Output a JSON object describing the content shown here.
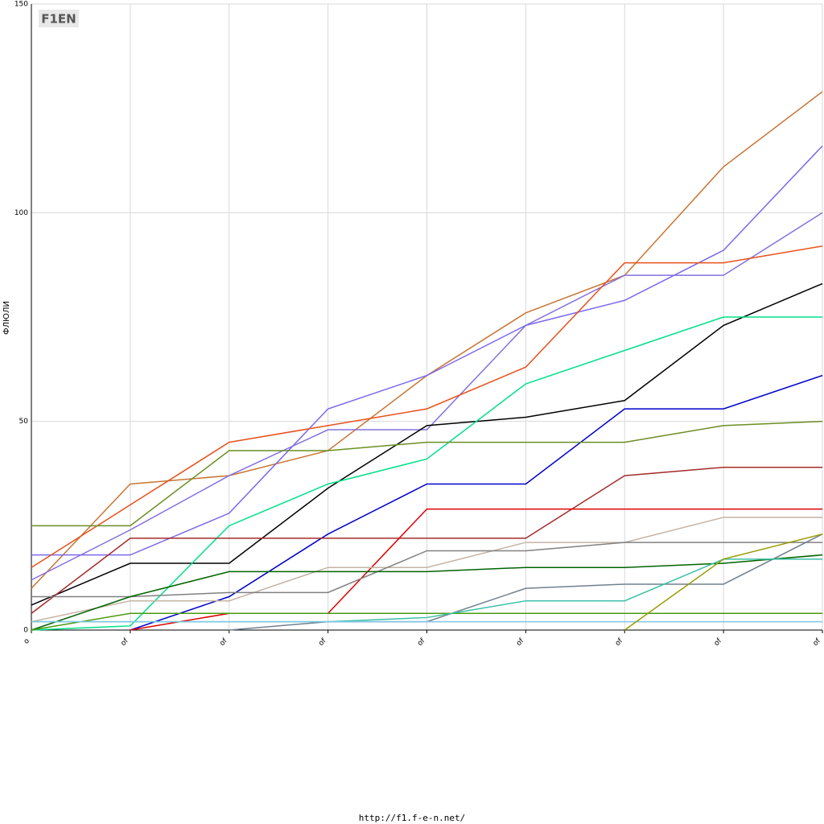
{
  "chart_data": {
    "type": "line",
    "y_label": "ФЛЮЛИ",
    "footer": "http://f1.f-e-n.net/",
    "logo": "F1EN",
    "categories": [
      "o",
      "of",
      "of",
      "of",
      "of",
      "of",
      "of",
      "of",
      "of"
    ],
    "ylim": [
      0,
      150
    ],
    "yticks": [
      0,
      50,
      100,
      150
    ],
    "grid": true,
    "series": [
      {
        "color": "#c87533",
        "values": [
          10,
          35,
          37,
          43,
          61,
          76,
          85,
          111,
          129
        ]
      },
      {
        "color": "#7b68ee",
        "values": [
          18,
          18,
          28,
          53,
          61,
          73,
          79,
          91,
          116
        ]
      },
      {
        "color": "#8470e0",
        "values": [
          12,
          24,
          37,
          48,
          48,
          73,
          85,
          85,
          100
        ]
      },
      {
        "color": "#e8501a",
        "values": [
          15,
          30,
          45,
          49,
          53,
          63,
          88,
          88,
          92
        ]
      },
      {
        "color": "#000000",
        "values": [
          6,
          16,
          16,
          34,
          49,
          51,
          55,
          73,
          83
        ]
      },
      {
        "color": "#00e08a",
        "values": [
          0,
          1,
          25,
          35,
          41,
          59,
          67,
          75,
          75
        ]
      },
      {
        "color": "#0000cc",
        "values": [
          null,
          0,
          8,
          23,
          35,
          35,
          53,
          53,
          61
        ]
      },
      {
        "color": "#6b8e23",
        "values": [
          25,
          25,
          43,
          43,
          45,
          45,
          45,
          49,
          50
        ]
      },
      {
        "color": "#a52a2a",
        "values": [
          4,
          22,
          22,
          22,
          22,
          22,
          37,
          39,
          39
        ]
      },
      {
        "color": "#e00000",
        "values": [
          null,
          0,
          4,
          4,
          29,
          29,
          29,
          29,
          29
        ]
      },
      {
        "color": "#c4b4a4",
        "values": [
          2,
          7,
          7,
          15,
          15,
          21,
          21,
          27,
          27
        ]
      },
      {
        "color": "#808080",
        "values": [
          8,
          8,
          9,
          9,
          19,
          19,
          21,
          21,
          21
        ]
      },
      {
        "color": "#708090",
        "values": [
          null,
          null,
          0,
          2,
          2,
          10,
          11,
          11,
          23
        ]
      },
      {
        "color": "#006400",
        "values": [
          0,
          8,
          14,
          14,
          14,
          15,
          15,
          16,
          18
        ]
      },
      {
        "color": "#4a9a10",
        "values": [
          0,
          4,
          4,
          4,
          4,
          4,
          4,
          4,
          4
        ]
      },
      {
        "color": "#3cc0a8",
        "values": [
          2,
          2,
          2,
          2,
          3,
          7,
          7,
          17,
          17
        ]
      },
      {
        "color": "#7ec8e8",
        "values": [
          2,
          2,
          2,
          2,
          2,
          2,
          2,
          2,
          2
        ]
      },
      {
        "color": "#9a9a00",
        "values": [
          null,
          null,
          null,
          null,
          null,
          null,
          0,
          17,
          23
        ]
      }
    ]
  }
}
